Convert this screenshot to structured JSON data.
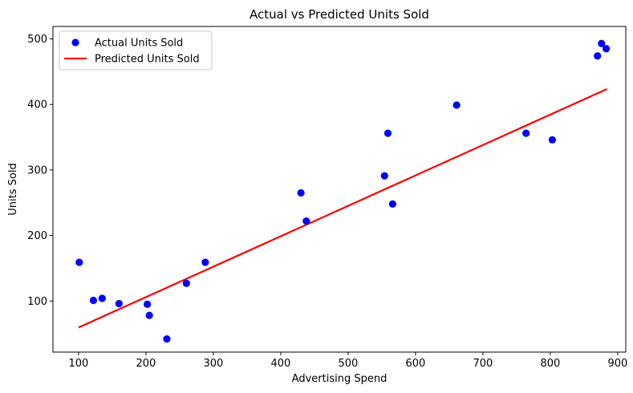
{
  "chart_data": {
    "type": "scatter",
    "title": "Actual vs Predicted Units Sold",
    "xlabel": "Advertising Spend",
    "ylabel": "Units Sold",
    "xlim": [
      62,
      912
    ],
    "ylim": [
      22,
      519
    ],
    "xticks": [
      100,
      200,
      300,
      400,
      500,
      600,
      700,
      800,
      900
    ],
    "yticks": [
      100,
      200,
      300,
      400,
      500
    ],
    "grid": false,
    "legend_position": "top-left",
    "series": [
      {
        "name": "Actual Units Sold",
        "kind": "scatter",
        "color": "#0000ff",
        "points": [
          [
            101,
            159
          ],
          [
            122,
            101
          ],
          [
            135,
            104
          ],
          [
            160,
            96
          ],
          [
            202,
            95
          ],
          [
            205,
            78
          ],
          [
            231,
            42
          ],
          [
            260,
            127
          ],
          [
            288,
            159
          ],
          [
            430,
            265
          ],
          [
            438,
            222
          ],
          [
            554,
            291
          ],
          [
            559,
            356
          ],
          [
            566,
            248
          ],
          [
            661,
            399
          ],
          [
            764,
            356
          ],
          [
            803,
            346
          ],
          [
            870,
            474
          ],
          [
            876,
            493
          ],
          [
            883,
            485
          ]
        ]
      },
      {
        "name": "Predicted Units Sold",
        "kind": "line",
        "color": "#ff0000",
        "points": [
          [
            101,
            60
          ],
          [
            883,
            423
          ]
        ]
      }
    ]
  }
}
